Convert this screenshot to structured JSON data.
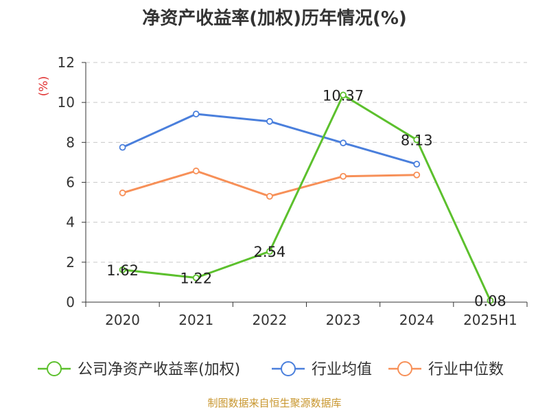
{
  "chart_data": {
    "type": "line",
    "title": "净资产收益率(加权)历年情况(%)",
    "ylabel": "(%)",
    "xlabel": "",
    "ylim": [
      0,
      12
    ],
    "yticks": [
      0,
      2,
      4,
      6,
      8,
      10,
      12
    ],
    "categories": [
      "2020",
      "2021",
      "2022",
      "2023",
      "2024",
      "2025H1"
    ],
    "grid": true,
    "legend": "bottom",
    "series": [
      {
        "name": "公司净资产收益率(加权)",
        "color": "#5cc02d",
        "values": [
          1.62,
          1.22,
          2.54,
          10.37,
          8.13,
          0.08
        ],
        "labels": [
          "1.62",
          "1.22",
          "2.54",
          "10.37",
          "8.13",
          "0.08"
        ],
        "show_labels": true
      },
      {
        "name": "行业均值",
        "color": "#4a7fdc",
        "values": [
          7.75,
          9.42,
          9.05,
          7.97,
          6.91,
          null
        ],
        "show_labels": false
      },
      {
        "name": "行业中位数",
        "color": "#f79058",
        "values": [
          5.47,
          6.57,
          5.3,
          6.3,
          6.37,
          null
        ],
        "show_labels": false
      }
    ]
  },
  "footer": {
    "source": "制图数据来自恒生聚源数据库"
  }
}
